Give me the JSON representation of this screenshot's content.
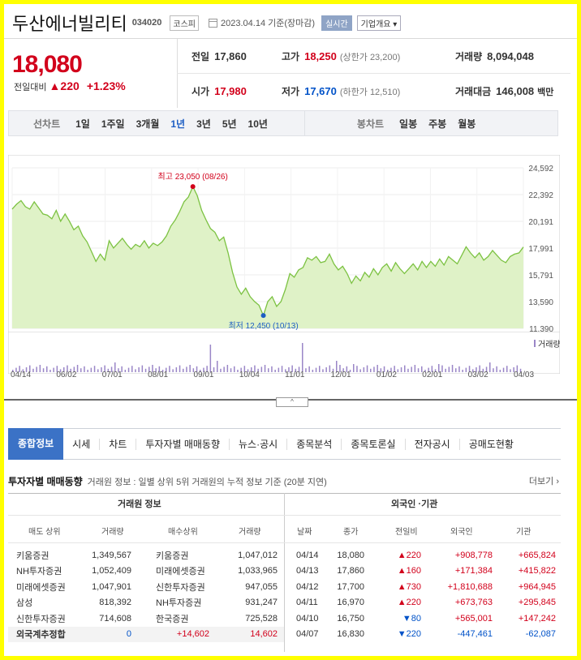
{
  "header": {
    "name": "두산에너빌리티",
    "code": "034020",
    "market": "코스피",
    "date": "2023.04.14 기준(장마감)",
    "live": "실시간",
    "corp_info": "기업개요"
  },
  "quote": {
    "price": "18,080",
    "diff_label": "전일대비",
    "diff": "220",
    "rate": "+1.23%"
  },
  "stats": [
    {
      "label": "전일",
      "value": "17,860",
      "sub": ""
    },
    {
      "label": "고가",
      "value": "18,250",
      "sub": "(상한가 23,200)"
    },
    {
      "label": "거래량",
      "value": "8,094,048",
      "sub": ""
    },
    {
      "label": "시가",
      "value": "17,980",
      "sub": ""
    },
    {
      "label": "저가",
      "value": "17,670",
      "sub": "(하한가 12,510)"
    },
    {
      "label": "거래대금",
      "value": "146,008",
      "sub": "백만"
    }
  ],
  "period": {
    "line_label": "선차트",
    "line": [
      "1일",
      "1주일",
      "3개월",
      "1년",
      "3년",
      "5년",
      "10년"
    ],
    "selected": "1년",
    "candle_label": "봉차트",
    "candle": [
      "일봉",
      "주봉",
      "월봉"
    ]
  },
  "chart_data": {
    "type": "area",
    "ylim": [
      11390,
      24592
    ],
    "y_ticks": [
      "24,592",
      "22,392",
      "20,191",
      "17,991",
      "15,791",
      "13,590",
      "11,390"
    ],
    "x_ticks": [
      "04/14",
      "06/02",
      "07/01",
      "08/01",
      "09/01",
      "10/04",
      "11/01",
      "12/01",
      "01/02",
      "02/01",
      "03/02",
      "04/03"
    ],
    "values": [
      21200,
      21600,
      21900,
      21400,
      21200,
      21800,
      21300,
      20800,
      20700,
      20400,
      21100,
      20200,
      20800,
      20200,
      19500,
      19800,
      19000,
      18500,
      17700,
      16900,
      17500,
      17000,
      18600,
      18000,
      18400,
      18800,
      18300,
      17900,
      18300,
      18100,
      18600,
      18000,
      18400,
      18200,
      18500,
      19000,
      19800,
      20300,
      21000,
      21800,
      22200,
      23050,
      22300,
      21100,
      20300,
      19600,
      19300,
      18600,
      18900,
      17600,
      16000,
      14800,
      14200,
      14700,
      14000,
      13600,
      13300,
      12450,
      13600,
      14000,
      13200,
      13600,
      14600,
      15900,
      15600,
      16200,
      16400,
      17200,
      17000,
      17300,
      16800,
      16900,
      17500,
      16700,
      16200,
      16500,
      15900,
      15100,
      15700,
      15300,
      16000,
      15600,
      16300,
      15800,
      16400,
      16700,
      16100,
      16800,
      16300,
      15900,
      16300,
      16700,
      16200,
      16900,
      16400,
      16900,
      16500,
      17100,
      16600,
      17300,
      17000,
      16700,
      17400,
      18100,
      17600,
      17200,
      17600,
      17000,
      17300,
      17800,
      17400,
      17000,
      16800,
      17300,
      17500,
      17600,
      18080
    ],
    "high_label": "최고 23,050 (08/26)",
    "low_label": "최저 12,450 (10/13)",
    "volume_label": "거래량"
  },
  "tabs": [
    "종합정보",
    "시세",
    "차트",
    "투자자별 매매동향",
    "뉴스·공시",
    "종목분석",
    "종목토론실",
    "전자공시",
    "공매도현황"
  ],
  "investor": {
    "title": "투자자별 매매동향",
    "desc": "거래원 정보 : 일별 상위 5위 거래원의 누적 정보 기준 (20분 지연)",
    "more": "더보기 ›"
  },
  "broker": {
    "group": "거래원 정보",
    "headers": [
      "매도 상위",
      "거래량",
      "매수상위",
      "거래량"
    ],
    "rows": [
      [
        "키움증권",
        "1,349,567",
        "키움증권",
        "1,047,012"
      ],
      [
        "NH투자증권",
        "1,052,409",
        "미래에셋증권",
        "1,033,965"
      ],
      [
        "미래에셋증권",
        "1,047,901",
        "신한투자증권",
        "947,055"
      ],
      [
        "삼성",
        "818,392",
        "NH투자증권",
        "931,247"
      ],
      [
        "신한투자증권",
        "714,608",
        "한국증권",
        "725,528"
      ]
    ],
    "foreign": [
      "외국계추정합",
      "0",
      "+14,602",
      "14,602"
    ]
  },
  "foreign_inst": {
    "group": "외국인 ·기관",
    "headers": [
      "날짜",
      "종가",
      "전일비",
      "외국인",
      "기관"
    ],
    "rows": [
      {
        "date": "04/14",
        "close": "18,080",
        "dir": "up",
        "diff": "220",
        "frgn": "+908,778",
        "inst": "+665,824"
      },
      {
        "date": "04/13",
        "close": "17,860",
        "dir": "up",
        "diff": "160",
        "frgn": "+171,384",
        "inst": "+415,822"
      },
      {
        "date": "04/12",
        "close": "17,700",
        "dir": "up",
        "diff": "730",
        "frgn": "+1,810,688",
        "inst": "+964,945"
      },
      {
        "date": "04/11",
        "close": "16,970",
        "dir": "up",
        "diff": "220",
        "frgn": "+673,763",
        "inst": "+295,845"
      },
      {
        "date": "04/10",
        "close": "16,750",
        "dir": "dn",
        "diff": "80",
        "frgn": "+565,001",
        "inst": "+147,242"
      },
      {
        "date": "04/07",
        "close": "16,830",
        "dir": "dn",
        "diff": "220",
        "frgn": "-447,461",
        "inst": "-62,087"
      }
    ]
  }
}
